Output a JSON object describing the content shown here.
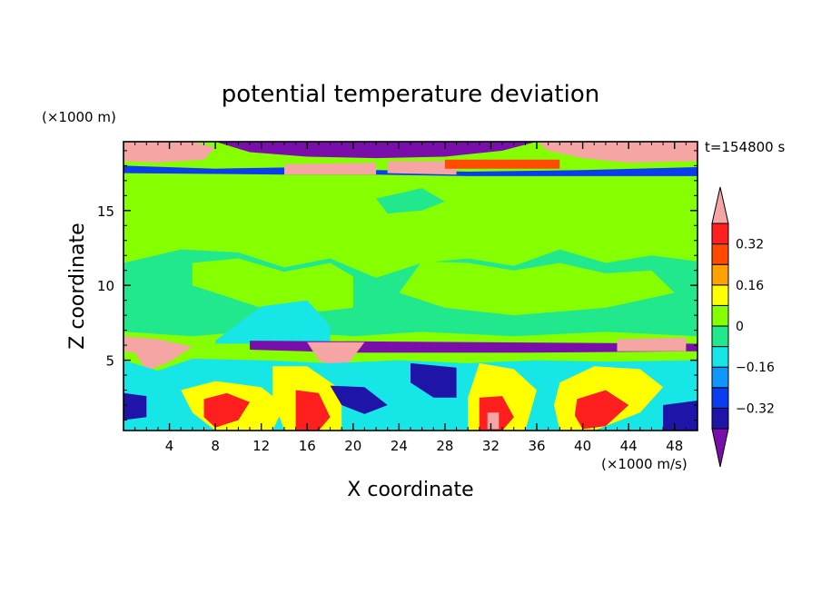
{
  "chart_data": {
    "type": "heatmap",
    "title": "potential temperature deviation",
    "xlabel": "X coordinate",
    "ylabel": "Z coordinate",
    "x_units": "(×1000 m/s)",
    "y_units": "(×1000 m)",
    "time_label": "t=154800 s",
    "xlim": [
      0,
      50
    ],
    "ylim": [
      0.3,
      19.6
    ],
    "x_ticks": [
      4,
      8,
      12,
      16,
      20,
      24,
      28,
      32,
      36,
      40,
      44,
      48
    ],
    "y_ticks": [
      5,
      10,
      15
    ],
    "colorbar": {
      "levels": [
        -0.4,
        -0.32,
        -0.24,
        -0.16,
        -0.08,
        0,
        0.08,
        0.16,
        0.24,
        0.32,
        0.4
      ],
      "labels": [
        "0.32",
        "0.16",
        "0",
        "−0.16",
        "−0.32"
      ],
      "label_values": [
        0.32,
        0.16,
        0,
        -0.16,
        -0.32
      ],
      "colors": [
        "#7a0eaa",
        "#1f14a8",
        "#0a3cf0",
        "#0f96ff",
        "#16e6e6",
        "#21e88d",
        "#86ff00",
        "#ffff00",
        "#ffa200",
        "#ff4a00",
        "#ff1f1f",
        "#f6a5a5"
      ],
      "extend": "both"
    },
    "background_level": 0.04,
    "regions": [
      {
        "level": 0.44,
        "poly": [
          [
            0,
            19.6
          ],
          [
            6,
            19.6
          ],
          [
            8,
            19.2
          ],
          [
            7,
            18.4
          ],
          [
            3,
            18.2
          ],
          [
            0,
            18.3
          ]
        ]
      },
      {
        "level": 0.44,
        "poly": [
          [
            36,
            19.6
          ],
          [
            50,
            19.6
          ],
          [
            50,
            18.3
          ],
          [
            44,
            18.2
          ],
          [
            40,
            18.5
          ],
          [
            37,
            19
          ]
        ]
      },
      {
        "level": -0.44,
        "poly": [
          [
            8,
            19.6
          ],
          [
            36,
            19.6
          ],
          [
            33,
            19
          ],
          [
            28,
            18.6
          ],
          [
            22,
            18.5
          ],
          [
            16,
            18.6
          ],
          [
            11,
            18.9
          ]
        ]
      },
      {
        "level": -0.3,
        "poly": [
          [
            0,
            18
          ],
          [
            8,
            17.8
          ],
          [
            16,
            17.9
          ],
          [
            22,
            17.7
          ],
          [
            30,
            17.6
          ],
          [
            40,
            17.7
          ],
          [
            50,
            17.9
          ],
          [
            50,
            17.3
          ],
          [
            40,
            17.3
          ],
          [
            30,
            17.3
          ],
          [
            22,
            17.4
          ],
          [
            14,
            17.4
          ],
          [
            0,
            17.5
          ]
        ]
      },
      {
        "level": 0.44,
        "poly": [
          [
            14,
            18.1
          ],
          [
            22,
            18.2
          ],
          [
            22,
            17.4
          ],
          [
            14,
            17.4
          ]
        ]
      },
      {
        "level": 0.44,
        "poly": [
          [
            23,
            18.3
          ],
          [
            29,
            18.3
          ],
          [
            29,
            17.4
          ],
          [
            23,
            17.5
          ]
        ]
      },
      {
        "level": 0.3,
        "poly": [
          [
            28,
            18.4
          ],
          [
            38,
            18.4
          ],
          [
            38,
            17.8
          ],
          [
            28,
            17.8
          ]
        ]
      },
      {
        "level": -0.04,
        "poly": [
          [
            0,
            11.5
          ],
          [
            5,
            12.4
          ],
          [
            10,
            12.2
          ],
          [
            14,
            11.2
          ],
          [
            18,
            11.8
          ],
          [
            22,
            10.5
          ],
          [
            26,
            11.5
          ],
          [
            30,
            11.8
          ],
          [
            34,
            11.3
          ],
          [
            38,
            12.4
          ],
          [
            42,
            11.5
          ],
          [
            46,
            12
          ],
          [
            50,
            11.6
          ],
          [
            50,
            6.6
          ],
          [
            42,
            6.9
          ],
          [
            34,
            6.6
          ],
          [
            26,
            6.9
          ],
          [
            20,
            6.6
          ],
          [
            12,
            7
          ],
          [
            6,
            6.6
          ],
          [
            0,
            6.9
          ]
        ]
      },
      {
        "level": 0.04,
        "poly": [
          [
            6,
            11.5
          ],
          [
            10,
            11.8
          ],
          [
            14,
            10.9
          ],
          [
            18,
            11.5
          ],
          [
            20,
            10.6
          ],
          [
            20,
            8.5
          ],
          [
            14,
            8
          ],
          [
            10,
            9
          ],
          [
            6,
            10
          ]
        ]
      },
      {
        "level": 0.04,
        "poly": [
          [
            26,
            11.6
          ],
          [
            30,
            11.5
          ],
          [
            34,
            11
          ],
          [
            38,
            11.5
          ],
          [
            42,
            10.8
          ],
          [
            46,
            11
          ],
          [
            48,
            9.5
          ],
          [
            42,
            8.5
          ],
          [
            34,
            8
          ],
          [
            28,
            8.5
          ],
          [
            24,
            9.5
          ]
        ]
      },
      {
        "level": -0.04,
        "poly": [
          [
            22,
            15.8
          ],
          [
            26,
            16.5
          ],
          [
            28,
            15.6
          ],
          [
            26,
            15
          ],
          [
            23,
            14.8
          ]
        ]
      },
      {
        "level": -0.12,
        "poly": [
          [
            8,
            6.3
          ],
          [
            12,
            8.6
          ],
          [
            16,
            9
          ],
          [
            18,
            7.3
          ],
          [
            18,
            6.1
          ],
          [
            8,
            6.1
          ]
        ]
      },
      {
        "level": -0.44,
        "poly": [
          [
            11,
            6.3
          ],
          [
            50,
            6.1
          ],
          [
            50,
            5.6
          ],
          [
            35,
            5.5
          ],
          [
            20,
            5.5
          ],
          [
            11,
            5.7
          ]
        ]
      },
      {
        "level": 0.44,
        "poly": [
          [
            0,
            6.6
          ],
          [
            3,
            6.4
          ],
          [
            6,
            5.9
          ],
          [
            4,
            4.9
          ],
          [
            2,
            4.3
          ],
          [
            1,
            5.5
          ],
          [
            0,
            5.6
          ]
        ]
      },
      {
        "level": 0.44,
        "poly": [
          [
            16,
            6.2
          ],
          [
            21,
            6.2
          ],
          [
            20,
            5.2
          ],
          [
            19,
            4.3
          ],
          [
            17,
            5
          ]
        ]
      },
      {
        "level": 0.44,
        "poly": [
          [
            43,
            6.4
          ],
          [
            49,
            6.5
          ],
          [
            49,
            5.6
          ],
          [
            43,
            5.6
          ]
        ]
      },
      {
        "level": -0.12,
        "poly": [
          [
            0,
            5
          ],
          [
            3,
            4.3
          ],
          [
            6,
            5.1
          ],
          [
            12,
            5
          ],
          [
            18,
            4.8
          ],
          [
            24,
            5
          ],
          [
            30,
            4.8
          ],
          [
            36,
            5
          ],
          [
            42,
            4.9
          ],
          [
            50,
            5
          ],
          [
            50,
            0.3
          ],
          [
            0,
            0.3
          ]
        ]
      },
      {
        "level": 0.12,
        "poly": [
          [
            5,
            3
          ],
          [
            8,
            3.6
          ],
          [
            12,
            3.2
          ],
          [
            14,
            2
          ],
          [
            13,
            0.3
          ],
          [
            8,
            0.3
          ],
          [
            6,
            1.5
          ]
        ]
      },
      {
        "level": 0.38,
        "poly": [
          [
            7,
            2.4
          ],
          [
            9,
            2.8
          ],
          [
            11,
            2.2
          ],
          [
            10,
            1
          ],
          [
            8,
            0.5
          ],
          [
            7,
            1.2
          ]
        ]
      },
      {
        "level": 0.12,
        "poly": [
          [
            13,
            4.6
          ],
          [
            16,
            4.6
          ],
          [
            19,
            3
          ],
          [
            19,
            0.3
          ],
          [
            14,
            0.3
          ],
          [
            13,
            2.5
          ]
        ]
      },
      {
        "level": 0.38,
        "poly": [
          [
            15,
            3
          ],
          [
            17,
            2.8
          ],
          [
            18,
            1.2
          ],
          [
            17,
            0.3
          ],
          [
            15,
            0.3
          ]
        ]
      },
      {
        "level": 0.12,
        "poly": [
          [
            31,
            4.8
          ],
          [
            34,
            4.4
          ],
          [
            36,
            3
          ],
          [
            35,
            0.3
          ],
          [
            30,
            0.3
          ],
          [
            30,
            2.5
          ]
        ]
      },
      {
        "level": 0.38,
        "poly": [
          [
            31,
            2.5
          ],
          [
            33,
            2.6
          ],
          [
            34,
            1.2
          ],
          [
            33,
            0.3
          ],
          [
            31,
            0.3
          ]
        ]
      },
      {
        "level": 0.44,
        "poly": [
          [
            31.7,
            1.5
          ],
          [
            32.7,
            1.5
          ],
          [
            32.7,
            0.4
          ],
          [
            31.7,
            0.4
          ]
        ]
      },
      {
        "level": 0.12,
        "poly": [
          [
            38,
            3.5
          ],
          [
            41,
            4.6
          ],
          [
            45,
            4.4
          ],
          [
            47,
            3.2
          ],
          [
            45,
            1.5
          ],
          [
            41,
            0.3
          ],
          [
            38,
            0.3
          ],
          [
            37.5,
            2
          ]
        ]
      },
      {
        "level": 0.38,
        "poly": [
          [
            39.5,
            2.4
          ],
          [
            42,
            3
          ],
          [
            44,
            2
          ],
          [
            42,
            0.6
          ],
          [
            40,
            0.4
          ],
          [
            39.3,
            1.3
          ]
        ]
      },
      {
        "level": -0.36,
        "poly": [
          [
            18,
            3.3
          ],
          [
            21,
            3.2
          ],
          [
            23,
            2
          ],
          [
            21,
            1.4
          ],
          [
            19,
            2
          ]
        ]
      },
      {
        "level": -0.36,
        "poly": [
          [
            25,
            4.8
          ],
          [
            29,
            4.5
          ],
          [
            29,
            2.5
          ],
          [
            27,
            2.5
          ],
          [
            25,
            3.5
          ]
        ]
      },
      {
        "level": -0.36,
        "poly": [
          [
            47,
            2
          ],
          [
            50,
            2.3
          ],
          [
            50,
            0.3
          ],
          [
            47,
            0.3
          ]
        ]
      },
      {
        "level": -0.36,
        "poly": [
          [
            0,
            2.8
          ],
          [
            2,
            2.6
          ],
          [
            2,
            1.2
          ],
          [
            0,
            1
          ]
        ]
      }
    ]
  }
}
